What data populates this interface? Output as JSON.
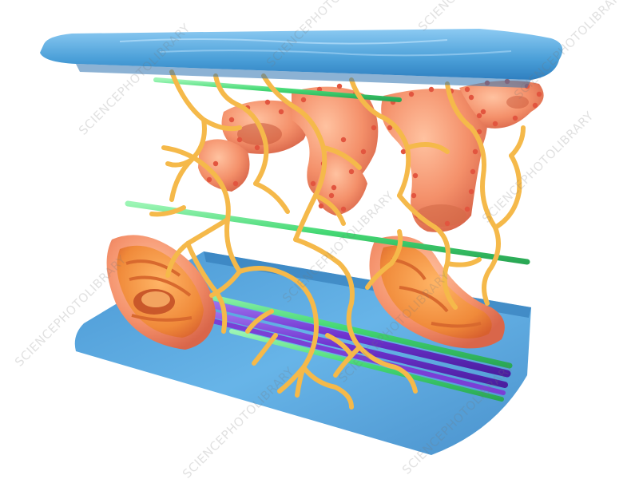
{
  "image": {
    "watermark_text": "SCIENCEPHOTOLIBRARY",
    "colors": {
      "background": "#ffffff",
      "membrane_blue": "#4a9fd8",
      "membrane_blue_light": "#7ec0ee",
      "reticulum_yellow": "#f5b94a",
      "organelle_orange": "#f28b5e",
      "ribosome_red": "#e2553f",
      "filament_green": "#4fe07f",
      "filament_purple": "#7a3fd6"
    }
  }
}
